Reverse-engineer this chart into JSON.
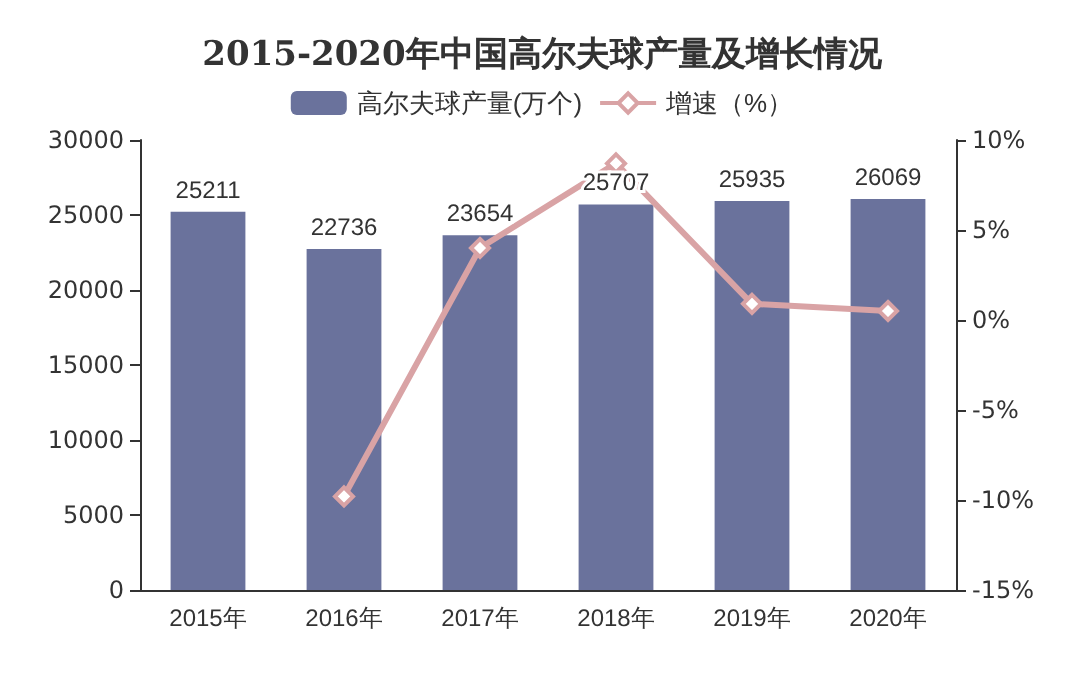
{
  "chart_data": {
    "type": "bar",
    "title": "2015-2020年中国高尔夫球产量及增长情况",
    "categories": [
      "2015年",
      "2016年",
      "2017年",
      "2018年",
      "2019年",
      "2020年"
    ],
    "series": [
      {
        "name": "高尔夫球产量(万个)",
        "color": "#6a729c",
        "values": [
          25211,
          22736,
          23654,
          25707,
          25935,
          26069
        ],
        "value_labels": [
          "25211",
          "22736",
          "23654",
          "25707",
          "25935",
          "26069"
        ]
      },
      {
        "name": "增速（%）",
        "type": "line",
        "axis": "y2",
        "color": "#d9a3a5",
        "marker": "diamond",
        "values": [
          null,
          -9.8,
          4.0,
          8.7,
          0.9,
          0.5
        ]
      }
    ],
    "ylim": [
      0,
      30000
    ],
    "yticks": [
      0,
      5000,
      10000,
      15000,
      20000,
      25000,
      30000
    ],
    "y2lim": [
      -15,
      10
    ],
    "y2ticks": [
      {
        "value": -15,
        "label": "-15%"
      },
      {
        "value": -10,
        "label": "-10%"
      },
      {
        "value": -5,
        "label": "-5%"
      },
      {
        "value": 0,
        "label": "0%"
      },
      {
        "value": 5,
        "label": "5%"
      },
      {
        "value": 10,
        "label": "10%"
      }
    ],
    "legend": "top"
  }
}
